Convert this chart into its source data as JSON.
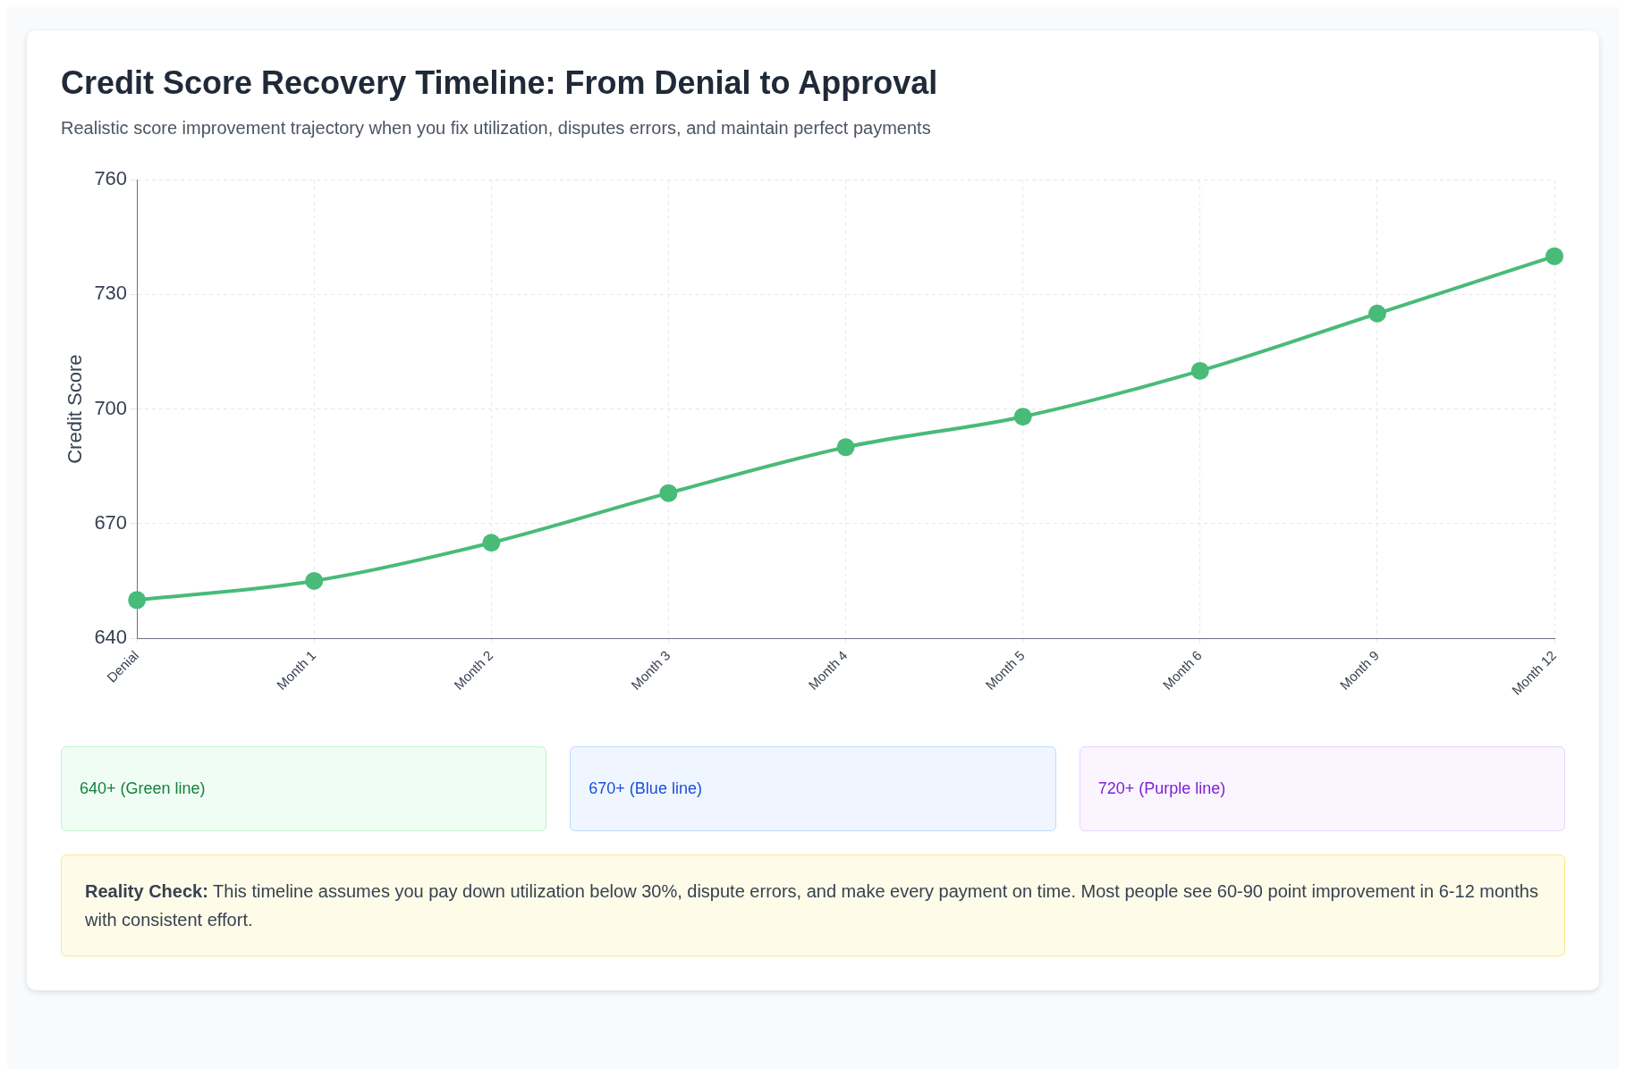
{
  "chart_data": {
    "type": "line",
    "title": "Credit Score Recovery Timeline: From Denial to Approval",
    "subtitle": "Realistic score improvement trajectory when you fix utilization, disputes errors, and maintain perfect payments",
    "ylabel": "Credit Score",
    "categories": [
      "Denial",
      "Month 1",
      "Month 2",
      "Month 3",
      "Month 4",
      "Month 5",
      "Month 6",
      "Month 9",
      "Month 12"
    ],
    "series": [
      {
        "color": "#48bb78",
        "values": [
          650,
          655,
          665,
          678,
          690,
          698,
          710,
          725,
          740
        ]
      }
    ],
    "ylim": [
      640,
      760
    ],
    "yticks": [
      640,
      670,
      700,
      730,
      760
    ],
    "grid": true,
    "legend": false,
    "marker": "circle",
    "line_style": "solid",
    "annotations": [
      "640+ (Green line)",
      "670+ (Blue line)",
      "720+ (Purple line)",
      "Reality Check: This timeline assumes you pay down utilization below 30%, dispute errors, and make every payment on time. Most people see 60-90 point improvement in 6-12 months with consistent effort."
    ]
  }
}
